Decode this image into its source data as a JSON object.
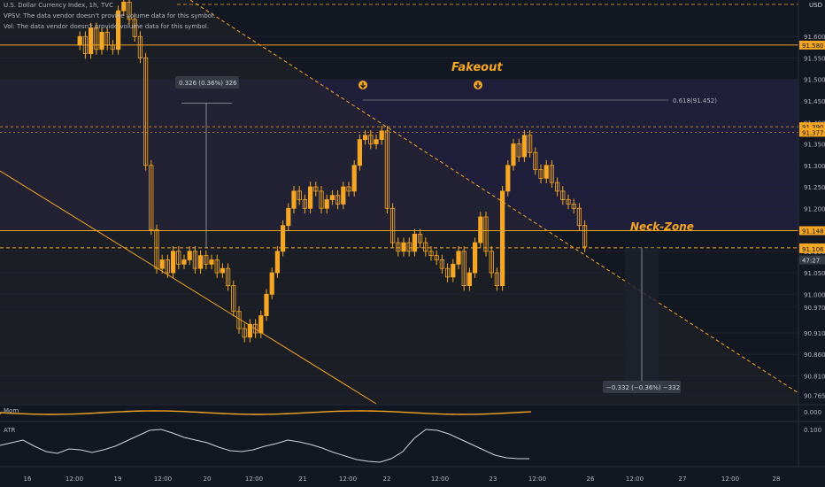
{
  "header": {
    "symbol": "U.S. Dollar Currency Index, 1h, TVC",
    "vpsv_note": "VPSV: The data vendor doesn't provide volume data for this symbol.",
    "vol_note": "Vol: The data vendor doesn't provide volume data for this symbol."
  },
  "currency": "USD",
  "pane_labels": {
    "momentum": "Mom",
    "atr": "ATR"
  },
  "colors": {
    "background": "#131722",
    "candle": "#f5a623",
    "accent_line": "#f5a623",
    "annotation_text": "#f5a623",
    "atr_line": "#d1d4dc",
    "grid": "#1e2230"
  },
  "annotations": {
    "fakeout": "Fakeout",
    "neck_zone": "Neck-Zone",
    "fib_label": "0.618(91.452)",
    "measure_up": "0.326 (0.36%) 326",
    "measure_down": "−0.332 (−0.36%) −332"
  },
  "icons": [
    "arrow-down-circle-icon",
    "arrow-down-circle-icon"
  ],
  "chart_data": {
    "type": "candlestick",
    "title": "U.S. Dollar Currency Index, 1h, TVC",
    "ylim": [
      90.745,
      91.685
    ],
    "y_ticks": [
      "91.600",
      "91.550",
      "91.500",
      "91.450",
      "91.400",
      "91.350",
      "91.300",
      "91.250",
      "91.200",
      "91.150",
      "91.100",
      "91.050",
      "91.000",
      "90.970",
      "90.910",
      "90.860",
      "90.810",
      "90.765"
    ],
    "price_labels": [
      {
        "text": "91.580",
        "value": 91.58
      },
      {
        "text": "91.390",
        "value": 91.39
      },
      {
        "text": "91.377",
        "value": 91.377
      },
      {
        "text": "91.148",
        "value": 91.148
      },
      {
        "text": "91.108",
        "value": 91.108
      },
      {
        "text": "91.106",
        "value": 91.106
      },
      {
        "text": "47:27",
        "value": 91.08
      }
    ],
    "x_ticks": [
      "16",
      "12:00",
      "19",
      "12:00",
      "20",
      "12:00",
      "21",
      "12:00",
      "22",
      "12:00",
      "23",
      "12:00",
      "26",
      "12:00",
      "27",
      "12:00",
      "28"
    ],
    "horizontal_levels": [
      91.58,
      91.148,
      91.108
    ],
    "fib_level": 91.452,
    "series": [
      {
        "name": "U.S. Dollar Currency Index",
        "values": [
          91.58,
          91.6,
          91.56,
          91.62,
          91.57,
          91.61,
          91.58,
          91.57,
          91.66,
          91.68,
          91.64,
          91.6,
          91.55,
          91.3,
          91.15,
          91.06,
          91.08,
          91.05,
          91.1,
          91.07,
          91.08,
          91.1,
          91.06,
          91.09,
          91.07,
          91.08,
          91.05,
          91.06,
          91.02,
          90.96,
          90.92,
          90.9,
          90.93,
          90.91,
          90.95,
          91.0,
          91.05,
          91.1,
          91.16,
          91.2,
          91.24,
          91.22,
          91.2,
          91.25,
          91.24,
          91.2,
          91.22,
          91.23,
          91.21,
          91.25,
          91.24,
          91.3,
          91.36,
          91.37,
          91.35,
          91.36,
          91.38,
          91.2,
          91.12,
          91.1,
          91.12,
          91.1,
          91.14,
          91.12,
          91.1,
          91.09,
          91.08,
          91.06,
          91.04,
          91.07,
          91.1,
          91.02,
          91.05,
          91.12,
          91.18,
          91.1,
          91.05,
          91.02,
          91.24,
          91.3,
          91.35,
          91.32,
          91.37,
          91.33,
          91.29,
          91.27,
          91.3,
          91.26,
          91.24,
          91.22,
          91.21,
          91.2,
          91.16,
          91.11
        ]
      }
    ],
    "momentum_value": "0.000",
    "atr_value": "0.100"
  }
}
